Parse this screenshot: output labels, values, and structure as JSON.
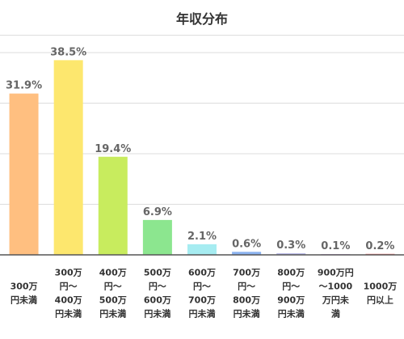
{
  "chart_data": {
    "type": "bar",
    "title": "年収分布",
    "categories": [
      [
        "300万",
        "円未満"
      ],
      [
        "300万",
        "円～",
        "400万",
        "円未満"
      ],
      [
        "400万",
        "円～",
        "500万",
        "円未満"
      ],
      [
        "500万",
        "円～",
        "600万",
        "円未満"
      ],
      [
        "600万",
        "円～",
        "700万",
        "円未満"
      ],
      [
        "700万",
        "円～",
        "800万",
        "円未満"
      ],
      [
        "800万",
        "円～",
        "900万",
        "円未満"
      ],
      [
        "900万円",
        "～1000",
        "万円未",
        "満"
      ],
      [
        "1000万",
        "円以上"
      ]
    ],
    "values": [
      31.9,
      38.5,
      19.4,
      6.9,
      2.1,
      0.6,
      0.3,
      0.1,
      0.2
    ],
    "value_labels": [
      "31.9%",
      "38.5%",
      "19.4%",
      "6.9%",
      "2.1%",
      "0.6%",
      "0.3%",
      "0.1%",
      "0.2%"
    ],
    "colors": [
      "#ffbf80",
      "#fde76e",
      "#c8ec5e",
      "#8ce68f",
      "#a6ecf1",
      "#8cb4f0",
      "#b3b3e6",
      "#d8b8f0",
      "#f08080"
    ],
    "ylim": [
      0,
      40
    ],
    "gridlines": [
      0,
      10,
      20,
      30,
      40
    ],
    "grid": true,
    "grid_color": "#dddddd",
    "xlabel": "",
    "ylabel": ""
  }
}
